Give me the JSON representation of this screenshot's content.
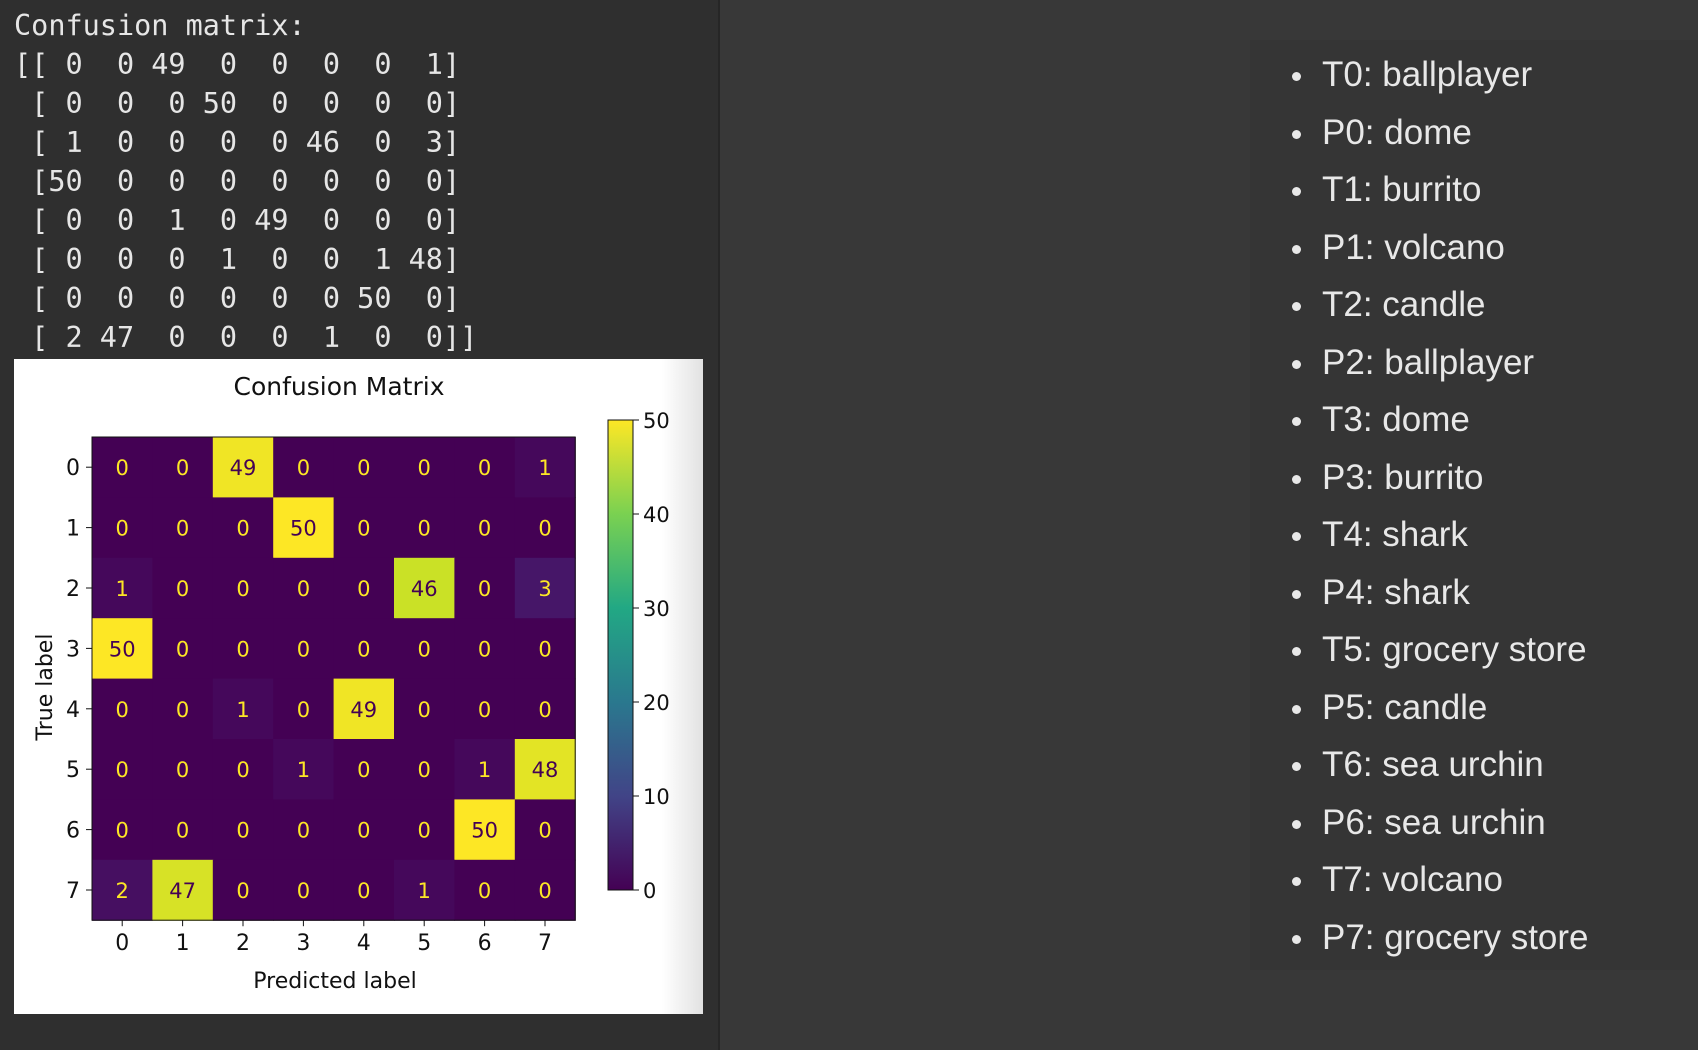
{
  "console": {
    "heading": "Confusion matrix:",
    "rows": [
      "[[ 0  0 49  0  0  0  0  1]",
      " [ 0  0  0 50  0  0  0  0]",
      " [ 1  0  0  0  0 46  0  3]",
      " [50  0  0  0  0  0  0  0]",
      " [ 0  0  1  0 49  0  0  0]",
      " [ 0  0  0  1  0  0  1 48]",
      " [ 0  0  0  0  0  0 50  0]",
      " [ 2 47  0  0  0  1  0  0]]"
    ]
  },
  "chart_data": {
    "type": "heatmap",
    "title": "Confusion Matrix",
    "xlabel": "Predicted label",
    "ylabel": "True label",
    "x_ticks": [
      "0",
      "1",
      "2",
      "3",
      "4",
      "5",
      "6",
      "7"
    ],
    "y_ticks": [
      "0",
      "1",
      "2",
      "3",
      "4",
      "5",
      "6",
      "7"
    ],
    "matrix": [
      [
        0,
        0,
        49,
        0,
        0,
        0,
        0,
        1
      ],
      [
        0,
        0,
        0,
        50,
        0,
        0,
        0,
        0
      ],
      [
        1,
        0,
        0,
        0,
        0,
        46,
        0,
        3
      ],
      [
        50,
        0,
        0,
        0,
        0,
        0,
        0,
        0
      ],
      [
        0,
        0,
        1,
        0,
        49,
        0,
        0,
        0
      ],
      [
        0,
        0,
        0,
        1,
        0,
        0,
        1,
        48
      ],
      [
        0,
        0,
        0,
        0,
        0,
        0,
        50,
        0
      ],
      [
        2,
        47,
        0,
        0,
        0,
        1,
        0,
        0
      ]
    ],
    "colormap": "viridis",
    "colorbar": {
      "range": [
        0,
        50
      ],
      "ticks": [
        "0",
        "10",
        "20",
        "30",
        "40",
        "50"
      ]
    },
    "grid": false
  },
  "legend": {
    "items": [
      "T0: ballplayer",
      "P0: dome",
      "T1: burrito",
      "P1: volcano",
      "T2: candle",
      "P2: ballplayer",
      "T3: dome",
      "P3: burrito",
      "T4: shark",
      "P4: shark",
      "T5: grocery store",
      "P5: candle",
      "T6: sea urchin",
      "P6: sea urchin",
      "T7: volcano",
      "P7: grocery store"
    ]
  }
}
